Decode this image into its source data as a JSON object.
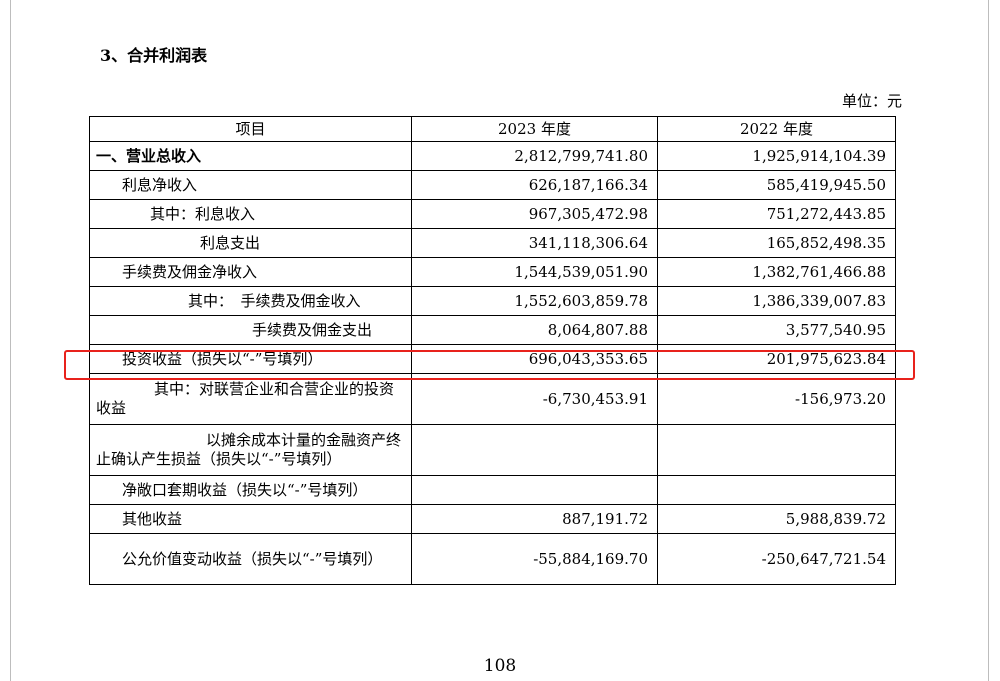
{
  "document": {
    "section_title": "3、合并利润表",
    "unit": "单位：元",
    "page_number": "108"
  },
  "table": {
    "headers": [
      "项目",
      "2023 年度",
      "2022 年度"
    ],
    "rows": [
      {
        "label": "一、营业总收入",
        "y2023": "2,812,799,741.80",
        "y2022": "1,925,914,104.39"
      },
      {
        "label": "利息净收入",
        "y2023": "626,187,166.34",
        "y2022": "585,419,945.50"
      },
      {
        "label": "其中：利息收入",
        "y2023": "967,305,472.98",
        "y2022": "751,272,443.85"
      },
      {
        "label": "利息支出",
        "y2023": "341,118,306.64",
        "y2022": "165,852,498.35"
      },
      {
        "label": "手续费及佣金净收入",
        "y2023": "1,544,539,051.90",
        "y2022": "1,382,761,466.88"
      },
      {
        "label": "其中：　手续费及佣金收入",
        "y2023": "1,552,603,859.78",
        "y2022": "1,386,339,007.83"
      },
      {
        "label": "手续费及佣金支出",
        "y2023": "8,064,807.88",
        "y2022": "3,577,540.95"
      },
      {
        "label": "投资收益（损失以“-”号填列）",
        "y2023": "696,043,353.65",
        "y2022": "201,975,623.84"
      },
      {
        "label": "其中：对联营企业和合营企业的投资收益",
        "y2023": "-6,730,453.91",
        "y2022": "-156,973.20"
      },
      {
        "label": "以摊余成本计量的金融资产终止确认产生损益（损失以“-”号填列）",
        "y2023": "",
        "y2022": ""
      },
      {
        "label": "净敞口套期收益（损失以“-”号填列）",
        "y2023": "",
        "y2022": ""
      },
      {
        "label": "其他收益",
        "y2023": "887,191.72",
        "y2022": "5,988,839.72"
      },
      {
        "label": "公允价值变动收益（损失以“-”号填列）",
        "y2023": "-55,884,169.70",
        "y2022": "-250,647,721.54"
      }
    ]
  },
  "annotation": {
    "highlight_color": "#e8221c"
  }
}
